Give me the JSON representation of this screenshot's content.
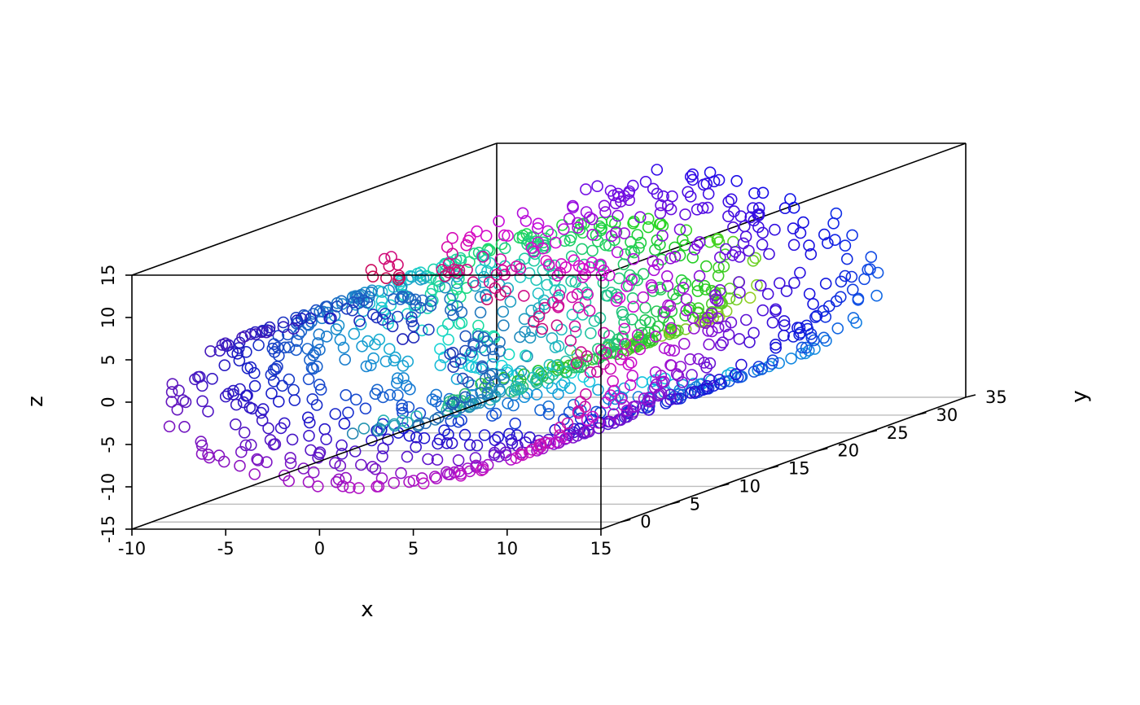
{
  "chart_data": {
    "type": "scatter",
    "subtype": "3d-scatter (swiss roll)",
    "title": "",
    "xlabel": "x",
    "ylabel": "y",
    "zlabel": "z",
    "xlim": [
      -10,
      15
    ],
    "ylim": [
      -2,
      35
    ],
    "zlim": [
      -15,
      15
    ],
    "x_ticks": [
      "-10",
      "-5",
      "0",
      "5",
      "10",
      "15"
    ],
    "y_ticks": [
      "0",
      "5",
      "10",
      "15",
      "20",
      "25",
      "30",
      "35"
    ],
    "z_ticks": [
      "-15",
      "-10",
      "-5",
      "0",
      "5",
      "10",
      "15"
    ],
    "grid": "floor (x-y plane) gridlines at y ticks",
    "box": "full wireframe box",
    "marker": "open circle",
    "color_mapping": "rainbow hue along roll parameter (t) and depth (y)",
    "point_count": 1400,
    "roll_param_t_range": [
      4.71,
      14.14
    ],
    "depth_y_range": [
      0,
      31
    ],
    "colors": {
      "start_near": "#1a8fc4",
      "start_far": "#e8d82a",
      "mid": "#7a3fb0",
      "end_near": "#1a1ae8",
      "end_far": "#e01a7a"
    },
    "point_rule": "x = t*cos(t), z = t*sin(t) for roll parameter t; y = depth value (data units)"
  }
}
